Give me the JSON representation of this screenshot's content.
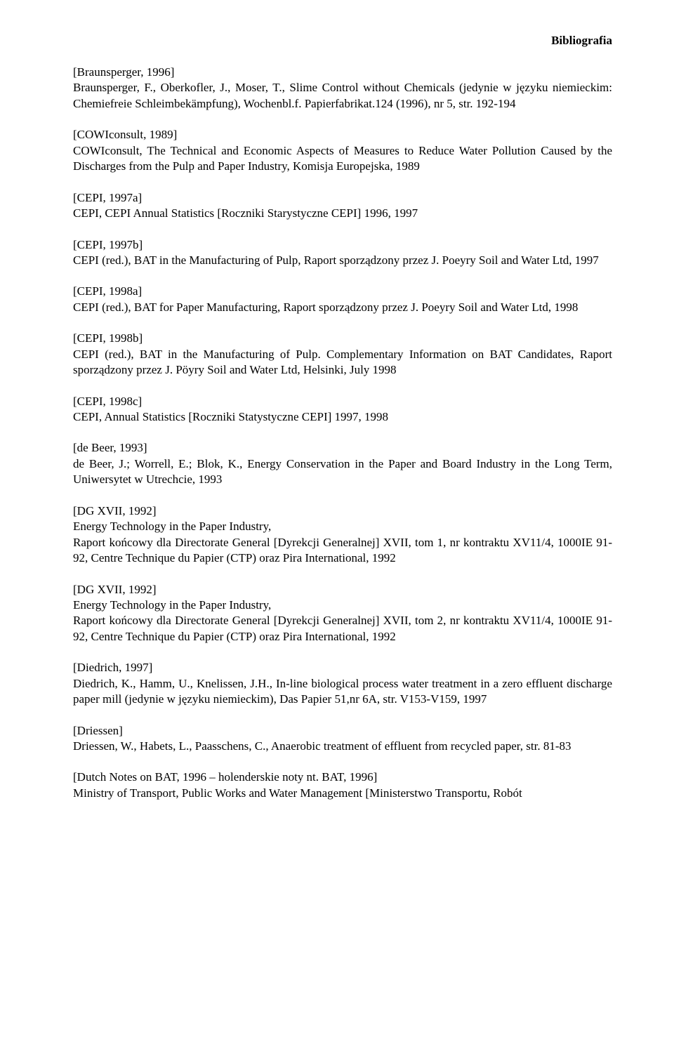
{
  "header": "Bibliografia",
  "entries": [
    {
      "key": "[Braunsperger, 1996]",
      "body": "Braunsperger, F., Oberkofler, J., Moser, T., Slime Control without Chemicals (jedynie w języku niemieckim: Chemiefreie Schleimbekämpfung), Wochenbl.f. Papierfabrikat.124 (1996), nr 5, str. 192-194"
    },
    {
      "key": "[COWIconsult, 1989]",
      "body": "COWIconsult, The Technical and Economic Aspects of Measures to Reduce Water Pollution Caused by the Discharges from the Pulp and Paper Industry, Komisja Europejska, 1989"
    },
    {
      "key": "[CEPI, 1997a]",
      "body": "CEPI, CEPI Annual Statistics [Roczniki Starystyczne CEPI] 1996, 1997"
    },
    {
      "key": "[CEPI, 1997b]",
      "body": "CEPI (red.), BAT in the Manufacturing of Pulp, Raport sporządzony przez J. Poeyry Soil and Water Ltd, 1997"
    },
    {
      "key": "[CEPI, 1998a]",
      "body": "CEPI (red.), BAT for Paper Manufacturing, Raport sporządzony przez J. Poeyry Soil and Water Ltd, 1998"
    },
    {
      "key": "[CEPI, 1998b]",
      "body": "CEPI (red.), BAT in the Manufacturing of Pulp. Complementary Information on BAT Candidates, Raport sporządzony przez J. Pöyry Soil and Water Ltd, Helsinki, July 1998"
    },
    {
      "key": "[CEPI, 1998c]",
      "body": "CEPI, Annual Statistics [Roczniki Statystyczne CEPI] 1997, 1998"
    },
    {
      "key": "[de Beer, 1993]",
      "body": "de Beer, J.; Worrell, E.; Blok, K., Energy Conservation in the Paper and Board Industry in the Long Term, Uniwersytet w Utrechcie, 1993"
    },
    {
      "key": "[DG XVII, 1992]",
      "body": "Energy Technology in the Paper Industry,\nRaport końcowy dla Directorate General [Dyrekcji Generalnej] XVII, tom 1, nr kontraktu XV11/4, 1000IE 91-92, Centre Technique du Papier (CTP) oraz Pira International, 1992"
    },
    {
      "key": "[DG XVII, 1992]",
      "body": "Energy Technology in the Paper Industry,\nRaport końcowy dla Directorate General [Dyrekcji Generalnej] XVII, tom 2, nr kontraktu XV11/4, 1000IE 91-92, Centre Technique du Papier (CTP) oraz Pira International, 1992"
    },
    {
      "key": "[Diedrich, 1997]",
      "body": "Diedrich, K., Hamm, U., Knelissen, J.H., In-line biological process water treatment in a zero effluent discharge paper mill (jedynie w języku niemieckim), Das Papier 51,nr 6A, str. V153-V159, 1997"
    },
    {
      "key": "[Driessen]",
      "body": "Driessen, W., Habets, L., Paasschens, C., Anaerobic treatment of effluent from recycled paper, str. 81-83"
    },
    {
      "key": "[Dutch Notes on BAT, 1996 – holenderskie noty nt. BAT, 1996]",
      "body": "Ministry of Transport, Public Works and Water Management [Ministerstwo Transportu, Robót"
    }
  ]
}
